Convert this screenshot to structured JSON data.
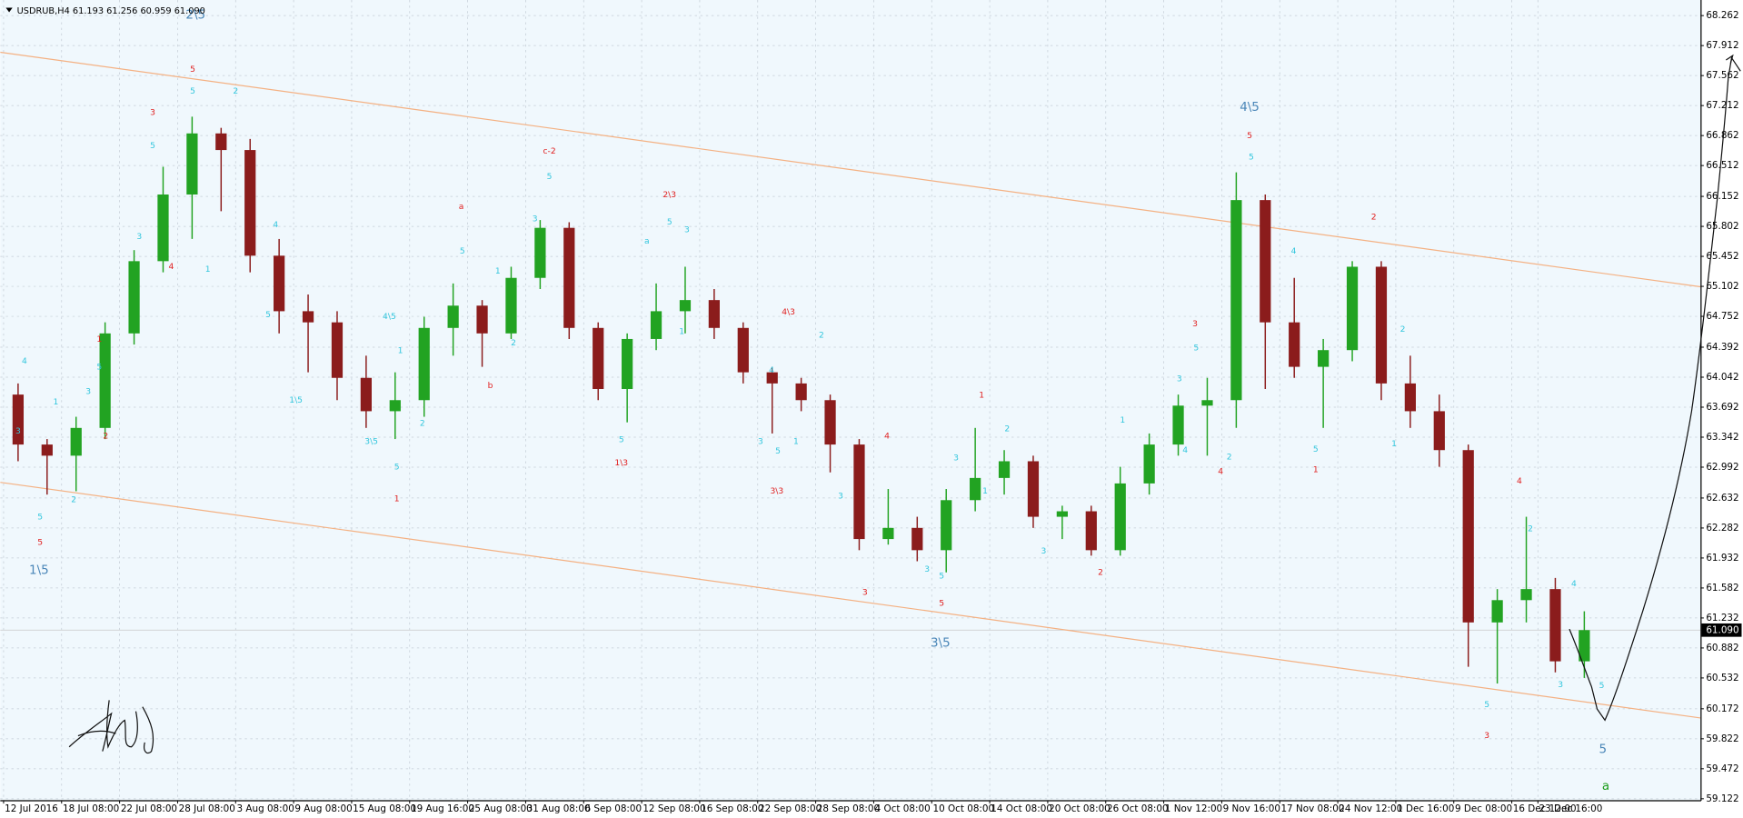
{
  "chart_data": {
    "type": "candlestick",
    "title": "USDRUB,H4  61.193 61.256 60.959 61.090",
    "up_color": "#22a322",
    "down_color": "#8b1c1c",
    "grid": true,
    "xlim": [
      -0.057,
      29.253
    ],
    "ylim": [
      59.105,
      68.444
    ],
    "xticks": [
      {
        "value": 0,
        "label": "12 Jul 2016"
      },
      {
        "value": 1,
        "label": "18 Jul 08:00"
      },
      {
        "value": 2,
        "label": "22 Jul 08:00"
      },
      {
        "value": 3,
        "label": "28 Jul 08:00"
      },
      {
        "value": 4,
        "label": "3 Aug 08:00"
      },
      {
        "value": 5,
        "label": "9 Aug 08:00"
      },
      {
        "value": 6,
        "label": "15 Aug 08:00"
      },
      {
        "value": 7,
        "label": "19 Aug 16:00"
      },
      {
        "value": 8,
        "label": "25 Aug 08:00"
      },
      {
        "value": 9,
        "label": "31 Aug 08:00"
      },
      {
        "value": 10,
        "label": "6 Sep 08:00"
      },
      {
        "value": 11,
        "label": "12 Sep 08:00"
      },
      {
        "value": 12,
        "label": "16 Sep 08:00"
      },
      {
        "value": 13,
        "label": "22 Sep 08:00"
      },
      {
        "value": 14,
        "label": "28 Sep 08:00"
      },
      {
        "value": 15,
        "label": "4 Oct 08:00"
      },
      {
        "value": 16,
        "label": "10 Oct 08:00"
      },
      {
        "value": 17,
        "label": "14 Oct 08:00"
      },
      {
        "value": 18,
        "label": "20 Oct 08:00"
      },
      {
        "value": 19,
        "label": "26 Oct 08:00"
      },
      {
        "value": 20,
        "label": "1 Nov 12:00"
      },
      {
        "value": 21,
        "label": "9 Nov 16:00"
      },
      {
        "value": 22,
        "label": "17 Nov 08:00"
      },
      {
        "value": 23,
        "label": "24 Nov 12:00"
      },
      {
        "value": 24,
        "label": "1 Dec 16:00"
      },
      {
        "value": 25,
        "label": "9 Dec 08:00"
      },
      {
        "value": 26,
        "label": "16 Dec 12:00"
      },
      {
        "value": 26.45,
        "label": "23 Dec 16:00"
      }
    ],
    "yticks": [
      68.262,
      67.912,
      67.562,
      67.212,
      66.862,
      66.512,
      66.152,
      65.802,
      65.452,
      65.102,
      64.752,
      64.392,
      64.042,
      63.692,
      63.342,
      62.992,
      62.632,
      62.282,
      61.932,
      61.582,
      61.232,
      60.882,
      60.532,
      60.172,
      59.822,
      59.472,
      59.122
    ],
    "current_price": {
      "value": 61.09,
      "label": "61.090"
    },
    "x": [
      0.25,
      0.75,
      1.25,
      1.75,
      2.25,
      2.75,
      3.25,
      3.75,
      4.25,
      4.75,
      5.25,
      5.75,
      6.25,
      6.75,
      7.25,
      7.75,
      8.25,
      8.75,
      9.25,
      9.75,
      10.25,
      10.75,
      11.25,
      11.75,
      12.25,
      12.75,
      13.25,
      13.75,
      14.25,
      14.75,
      15.25,
      15.75,
      16.25,
      16.75,
      17.25,
      17.75,
      18.25,
      18.75,
      19.25,
      19.75,
      20.25,
      20.75,
      21.25,
      21.75,
      22.25,
      22.75,
      23.25,
      23.75,
      24.25,
      24.75,
      25.25,
      25.75,
      26.25,
      26.75,
      27.25
    ],
    "open": [
      63.839,
      63.256,
      63.126,
      63.45,
      64.553,
      65.396,
      66.174,
      66.887,
      66.693,
      65.46,
      64.812,
      64.682,
      64.034,
      63.645,
      63.774,
      64.617,
      64.877,
      64.553,
      65.201,
      65.785,
      64.617,
      63.904,
      64.488,
      64.812,
      64.942,
      64.617,
      64.099,
      63.969,
      63.774,
      63.256,
      62.153,
      62.283,
      62.023,
      62.607,
      62.866,
      63.061,
      62.413,
      62.477,
      62.023,
      62.802,
      63.256,
      63.71,
      63.774,
      66.109,
      64.682,
      64.163,
      64.358,
      65.331,
      63.969,
      63.645,
      63.191,
      61.18,
      61.44,
      61.569,
      60.726
    ],
    "high": [
      63.969,
      63.32,
      63.58,
      64.682,
      65.525,
      66.498,
      67.082,
      66.952,
      66.822,
      65.655,
      65.007,
      64.812,
      64.293,
      64.099,
      64.747,
      65.136,
      64.942,
      65.331,
      65.876,
      65.85,
      64.682,
      64.553,
      65.136,
      65.331,
      65.071,
      64.682,
      64.163,
      64.034,
      63.839,
      63.32,
      62.737,
      62.413,
      62.737,
      63.45,
      63.191,
      63.126,
      62.542,
      62.542,
      62.996,
      63.385,
      63.839,
      64.034,
      66.433,
      66.174,
      65.201,
      64.488,
      65.396,
      65.396,
      64.293,
      63.839,
      63.256,
      61.569,
      62.413,
      61.699,
      61.31
    ],
    "low": [
      63.061,
      62.672,
      62.711,
      63.32,
      64.423,
      65.266,
      65.655,
      65.979,
      65.266,
      64.553,
      64.099,
      63.774,
      63.45,
      63.32,
      63.58,
      64.293,
      64.163,
      64.488,
      65.071,
      64.488,
      63.774,
      63.515,
      64.358,
      64.553,
      64.488,
      63.969,
      63.385,
      63.645,
      62.931,
      62.023,
      62.088,
      61.894,
      61.764,
      62.477,
      62.672,
      62.283,
      62.153,
      61.959,
      61.959,
      62.672,
      63.126,
      63.126,
      63.45,
      63.904,
      64.034,
      63.45,
      64.228,
      63.774,
      63.45,
      62.996,
      60.662,
      60.467,
      61.18,
      60.597,
      60.532
    ],
    "close": [
      63.256,
      63.126,
      63.45,
      64.553,
      65.396,
      66.174,
      66.887,
      66.693,
      65.46,
      64.812,
      64.682,
      64.034,
      63.645,
      63.774,
      64.617,
      64.877,
      64.553,
      65.201,
      65.785,
      64.617,
      63.904,
      64.488,
      64.812,
      64.942,
      64.617,
      64.099,
      63.969,
      63.774,
      63.256,
      62.153,
      62.283,
      62.023,
      62.607,
      62.866,
      63.061,
      62.413,
      62.477,
      62.023,
      62.802,
      63.256,
      63.71,
      63.774,
      66.109,
      64.682,
      64.163,
      64.358,
      65.331,
      63.969,
      63.645,
      63.191,
      61.18,
      61.44,
      61.569,
      60.726,
      61.09
    ],
    "trendlines": [
      {
        "color": "#f4b183",
        "x": [
          -0.057,
          29.253
        ],
        "y": [
          67.834,
          65.097
        ]
      },
      {
        "color": "#f4b183",
        "x": [
          -0.057,
          29.253
        ],
        "y": [
          62.815,
          60.065
        ]
      }
    ],
    "annotations": [
      {
        "text": "4",
        "x": 0.36,
        "y": 64.23,
        "color": "#33c6dd"
      },
      {
        "text": "3",
        "x": 0.25,
        "y": 63.41,
        "color": "#33c6dd"
      },
      {
        "text": "5",
        "x": 0.63,
        "y": 62.41,
        "color": "#33c6dd"
      },
      {
        "text": "5",
        "x": 0.63,
        "y": 62.11,
        "color": "#e02020"
      },
      {
        "text": "1\\5",
        "x": 0.61,
        "y": 61.79,
        "color": "#4a86b8",
        "major": true
      },
      {
        "text": "1",
        "x": 0.9,
        "y": 63.75,
        "color": "#33c6dd"
      },
      {
        "text": "2",
        "x": 1.21,
        "y": 62.61,
        "color": "#33c6dd"
      },
      {
        "text": "3",
        "x": 1.46,
        "y": 63.87,
        "color": "#33c6dd"
      },
      {
        "text": "5",
        "x": 1.65,
        "y": 64.16,
        "color": "#33c6dd"
      },
      {
        "text": "1",
        "x": 1.65,
        "y": 64.48,
        "color": "#e02020"
      },
      {
        "text": "2",
        "x": 1.76,
        "y": 63.35,
        "color": "#e02020"
      },
      {
        "text": "3",
        "x": 2.34,
        "y": 65.68,
        "color": "#33c6dd"
      },
      {
        "text": "5",
        "x": 2.57,
        "y": 66.74,
        "color": "#33c6dd"
      },
      {
        "text": "3",
        "x": 2.57,
        "y": 67.13,
        "color": "#e02020"
      },
      {
        "text": "4",
        "x": 2.89,
        "y": 65.33,
        "color": "#e02020"
      },
      {
        "text": "5",
        "x": 3.26,
        "y": 67.63,
        "color": "#e02020"
      },
      {
        "text": "5",
        "x": 3.26,
        "y": 67.38,
        "color": "#33c6dd"
      },
      {
        "text": "2\\5",
        "x": 3.31,
        "y": 68.27,
        "color": "#4a86b8",
        "major": true
      },
      {
        "text": "2",
        "x": 4.0,
        "y": 67.38,
        "color": "#33c6dd"
      },
      {
        "text": "1",
        "x": 3.52,
        "y": 65.3,
        "color": "#33c6dd"
      },
      {
        "text": "4",
        "x": 4.69,
        "y": 65.82,
        "color": "#33c6dd"
      },
      {
        "text": "5",
        "x": 4.56,
        "y": 64.77,
        "color": "#33c6dd"
      },
      {
        "text": "1\\5",
        "x": 5.04,
        "y": 63.77,
        "color": "#33c6dd"
      },
      {
        "text": "4\\5",
        "x": 6.65,
        "y": 64.75,
        "color": "#33c6dd"
      },
      {
        "text": "3\\5",
        "x": 6.34,
        "y": 63.29,
        "color": "#33c6dd"
      },
      {
        "text": "1",
        "x": 6.84,
        "y": 64.35,
        "color": "#33c6dd"
      },
      {
        "text": "2",
        "x": 7.22,
        "y": 63.5,
        "color": "#33c6dd"
      },
      {
        "text": "5",
        "x": 6.78,
        "y": 62.99,
        "color": "#33c6dd"
      },
      {
        "text": "1",
        "x": 6.78,
        "y": 62.62,
        "color": "#e02020"
      },
      {
        "text": "a",
        "x": 7.89,
        "y": 66.03,
        "color": "#e02020"
      },
      {
        "text": "5",
        "x": 7.91,
        "y": 65.51,
        "color": "#33c6dd"
      },
      {
        "text": "b",
        "x": 8.39,
        "y": 63.94,
        "color": "#e02020"
      },
      {
        "text": "1",
        "x": 8.52,
        "y": 65.28,
        "color": "#33c6dd"
      },
      {
        "text": "3",
        "x": 9.16,
        "y": 65.89,
        "color": "#33c6dd"
      },
      {
        "text": "c-2",
        "x": 9.41,
        "y": 66.68,
        "color": "#e02020"
      },
      {
        "text": "5",
        "x": 9.41,
        "y": 66.38,
        "color": "#33c6dd"
      },
      {
        "text": "2",
        "x": 8.79,
        "y": 64.44,
        "color": "#33c6dd"
      },
      {
        "text": "5",
        "x": 10.65,
        "y": 63.31,
        "color": "#33c6dd"
      },
      {
        "text": "1\\3",
        "x": 10.65,
        "y": 63.04,
        "color": "#e02020"
      },
      {
        "text": "a",
        "x": 11.09,
        "y": 65.63,
        "color": "#33c6dd"
      },
      {
        "text": "2\\3",
        "x": 11.48,
        "y": 66.17,
        "color": "#e02020"
      },
      {
        "text": "5",
        "x": 11.48,
        "y": 65.85,
        "color": "#33c6dd"
      },
      {
        "text": "3",
        "x": 11.78,
        "y": 65.76,
        "color": "#33c6dd"
      },
      {
        "text": "1",
        "x": 11.69,
        "y": 64.57,
        "color": "#33c6dd"
      },
      {
        "text": "4\\3",
        "x": 13.53,
        "y": 64.8,
        "color": "#e02020"
      },
      {
        "text": "2",
        "x": 14.1,
        "y": 64.53,
        "color": "#33c6dd"
      },
      {
        "text": "4",
        "x": 13.24,
        "y": 64.12,
        "color": "#33c6dd"
      },
      {
        "text": "3",
        "x": 13.05,
        "y": 63.29,
        "color": "#33c6dd"
      },
      {
        "text": "5",
        "x": 13.35,
        "y": 63.18,
        "color": "#33c6dd"
      },
      {
        "text": "1",
        "x": 13.66,
        "y": 63.29,
        "color": "#33c6dd"
      },
      {
        "text": "3\\3",
        "x": 13.33,
        "y": 62.71,
        "color": "#e02020"
      },
      {
        "text": "4",
        "x": 15.23,
        "y": 63.35,
        "color": "#e02020"
      },
      {
        "text": "3",
        "x": 14.43,
        "y": 62.65,
        "color": "#33c6dd"
      },
      {
        "text": "3",
        "x": 14.85,
        "y": 61.53,
        "color": "#e02020"
      },
      {
        "text": "5",
        "x": 16.17,
        "y": 61.4,
        "color": "#e02020"
      },
      {
        "text": "3\\5",
        "x": 16.15,
        "y": 60.94,
        "color": "#4a86b8",
        "major": true
      },
      {
        "text": "3",
        "x": 15.92,
        "y": 61.8,
        "color": "#33c6dd"
      },
      {
        "text": "5",
        "x": 16.17,
        "y": 61.72,
        "color": "#33c6dd"
      },
      {
        "text": "3",
        "x": 16.42,
        "y": 63.1,
        "color": "#33c6dd"
      },
      {
        "text": "1",
        "x": 16.86,
        "y": 63.83,
        "color": "#e02020"
      },
      {
        "text": "2",
        "x": 17.3,
        "y": 63.44,
        "color": "#33c6dd"
      },
      {
        "text": "1",
        "x": 16.92,
        "y": 62.71,
        "color": "#33c6dd"
      },
      {
        "text": "3",
        "x": 17.93,
        "y": 62.01,
        "color": "#33c6dd"
      },
      {
        "text": "2",
        "x": 18.91,
        "y": 61.76,
        "color": "#e02020"
      },
      {
        "text": "1",
        "x": 19.29,
        "y": 63.54,
        "color": "#33c6dd"
      },
      {
        "text": "3",
        "x": 20.54,
        "y": 64.66,
        "color": "#e02020"
      },
      {
        "text": "5",
        "x": 20.56,
        "y": 64.38,
        "color": "#33c6dd"
      },
      {
        "text": "3",
        "x": 20.27,
        "y": 64.02,
        "color": "#33c6dd"
      },
      {
        "text": "4",
        "x": 20.37,
        "y": 63.19,
        "color": "#33c6dd"
      },
      {
        "text": "4",
        "x": 20.98,
        "y": 62.94,
        "color": "#e02020"
      },
      {
        "text": "2",
        "x": 21.13,
        "y": 63.11,
        "color": "#33c6dd"
      },
      {
        "text": "4\\5",
        "x": 21.48,
        "y": 67.19,
        "color": "#4a86b8",
        "major": true
      },
      {
        "text": "5",
        "x": 21.48,
        "y": 66.86,
        "color": "#e02020"
      },
      {
        "text": "5",
        "x": 21.51,
        "y": 66.61,
        "color": "#33c6dd"
      },
      {
        "text": "4",
        "x": 22.24,
        "y": 65.51,
        "color": "#33c6dd"
      },
      {
        "text": "5",
        "x": 22.62,
        "y": 63.2,
        "color": "#33c6dd"
      },
      {
        "text": "1",
        "x": 22.62,
        "y": 62.96,
        "color": "#e02020"
      },
      {
        "text": "2",
        "x": 23.62,
        "y": 65.91,
        "color": "#e02020"
      },
      {
        "text": "2",
        "x": 24.12,
        "y": 64.6,
        "color": "#33c6dd"
      },
      {
        "text": "1",
        "x": 23.97,
        "y": 63.26,
        "color": "#33c6dd"
      },
      {
        "text": "4",
        "x": 26.13,
        "y": 62.83,
        "color": "#e02020"
      },
      {
        "text": "2",
        "x": 26.32,
        "y": 62.27,
        "color": "#33c6dd"
      },
      {
        "text": "5",
        "x": 25.57,
        "y": 60.22,
        "color": "#33c6dd"
      },
      {
        "text": "3",
        "x": 25.57,
        "y": 59.86,
        "color": "#e02020"
      },
      {
        "text": "3",
        "x": 26.84,
        "y": 60.45,
        "color": "#33c6dd"
      },
      {
        "text": "4",
        "x": 27.07,
        "y": 61.63,
        "color": "#33c6dd"
      },
      {
        "text": "5",
        "x": 27.55,
        "y": 60.44,
        "color": "#33c6dd"
      },
      {
        "text": "5",
        "x": 27.57,
        "y": 59.7,
        "color": "#4a86b8",
        "major": true
      },
      {
        "text": "a",
        "x": 27.62,
        "y": 59.27,
        "color": "#1e9e1e",
        "major": true
      }
    ]
  }
}
